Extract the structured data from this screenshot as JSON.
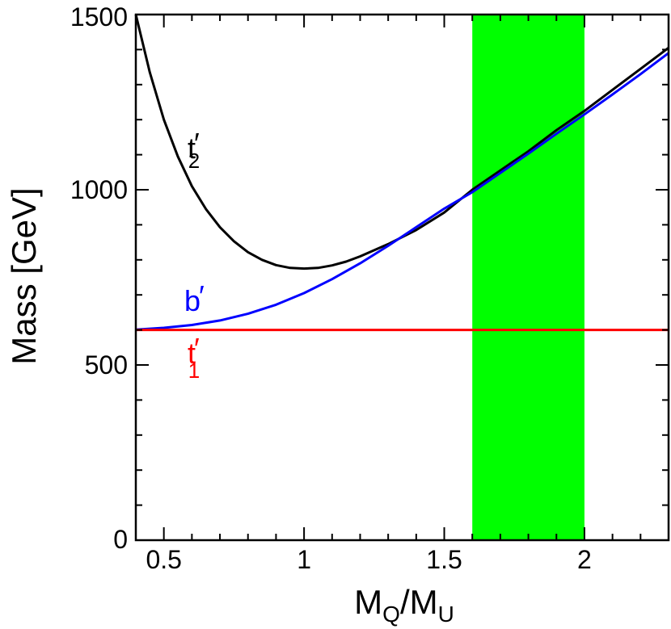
{
  "chart_data": {
    "type": "line",
    "xlabel": "M",
    "xlabel_parts": {
      "num": "M",
      "num_sub": "Q",
      "slash": "/M",
      "den_sub": "U"
    },
    "ylabel": "Mass [GeV]",
    "xlim": [
      0.4,
      2.3
    ],
    "ylim": [
      0,
      1500
    ],
    "xticks": [
      "0.5",
      "1",
      "1.5",
      "2"
    ],
    "xtick_values": [
      0.5,
      1,
      1.5,
      2
    ],
    "yticks": [
      "0",
      "500",
      "1000",
      "1500"
    ],
    "ytick_values": [
      0,
      500,
      1000,
      1500
    ],
    "grid": false,
    "band": {
      "x": [
        1.6,
        2.0
      ],
      "color": "#00ff00"
    },
    "series": [
      {
        "name": "t2",
        "label_base": "t",
        "label_sub": "2",
        "label_prime": "′",
        "color": "#000000",
        "x": [
          0.4,
          0.45,
          0.5,
          0.55,
          0.6,
          0.65,
          0.7,
          0.75,
          0.8,
          0.85,
          0.9,
          0.95,
          1.0,
          1.05,
          1.1,
          1.15,
          1.2,
          1.3,
          1.4,
          1.5,
          1.6,
          1.7,
          1.8,
          1.9,
          2.0,
          2.1,
          2.2,
          2.3
        ],
        "y": [
          1500,
          1335,
          1200,
          1095,
          1010,
          945,
          893,
          853,
          822,
          800,
          785,
          777,
          775,
          777,
          784,
          795,
          810,
          845,
          885,
          935,
          1000,
          1055,
          1110,
          1170,
          1225,
          1285,
          1345,
          1405
        ]
      },
      {
        "name": "b",
        "label_base": "b",
        "label_sub": "",
        "label_prime": "′",
        "color": "#0000ff",
        "x": [
          0.4,
          0.5,
          0.6,
          0.7,
          0.8,
          0.9,
          1.0,
          1.1,
          1.2,
          1.3,
          1.4,
          1.5,
          1.6,
          1.7,
          1.8,
          1.9,
          2.0,
          2.1,
          2.2,
          2.3
        ],
        "y": [
          601,
          606,
          614,
          627,
          646,
          672,
          705,
          745,
          790,
          840,
          893,
          946,
          993,
          1048,
          1103,
          1160,
          1215,
          1272,
          1330,
          1390
        ]
      },
      {
        "name": "t1",
        "label_base": "t",
        "label_sub": "1",
        "label_prime": "′",
        "color": "#ff0000",
        "x": [
          0.4,
          2.3
        ],
        "y": [
          600,
          600
        ]
      }
    ]
  }
}
